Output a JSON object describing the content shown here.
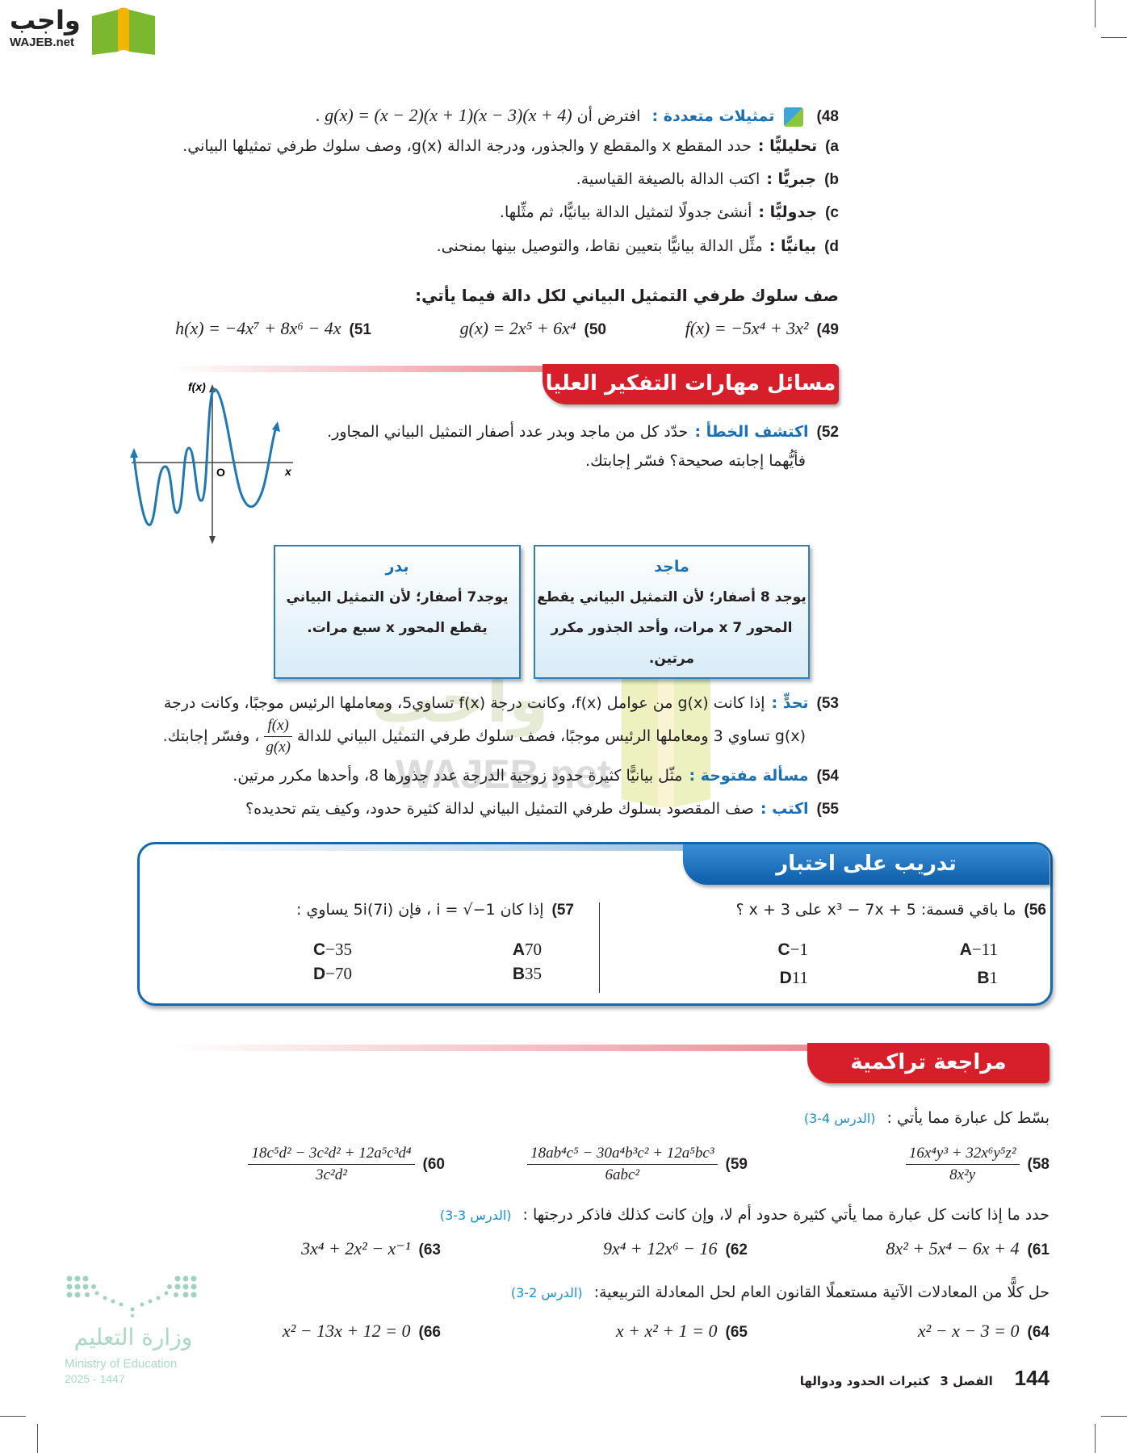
{
  "logo": {
    "arabic": "واجب",
    "latin": "WAJEB.net"
  },
  "watermark": {
    "arabic": "واجب",
    "latin": "WAJEB.net"
  },
  "q48": {
    "number": "48)",
    "label": "تمثيلات متعددة :",
    "text": "افترض أن",
    "math": ". g(x) = (x − 2)(x + 1)(x − 3)(x + 4)",
    "parts": [
      {
        "letter": "a)",
        "label": "تحليليًّا :",
        "text": "حدد المقطع x والمقطع y والجذور، ودرجة الدالة g(x)، وصف سلوك طرفي تمثيلها البياني."
      },
      {
        "letter": "b)",
        "label": "جبريًّا :",
        "text": "اكتب الدالة بالصيغة القياسية."
      },
      {
        "letter": "c)",
        "label": "جدوليًّا :",
        "text": "أنشئ جدولًا لتمثيل الدالة بيانيًّا، ثم مثِّلها."
      },
      {
        "letter": "d)",
        "label": "بيانيًّا :",
        "text": "مثِّل الدالة بيانيًّا بتعيين نقاط، والتوصيل بينها بمنحنى."
      }
    ]
  },
  "endBehavior": {
    "heading": "صف سلوك طرفي التمثيل البياني لكل دالة فيما يأتي:",
    "items": [
      {
        "number": "49)",
        "math": "f(x) = −5x⁴ + 3x²"
      },
      {
        "number": "50)",
        "math": "g(x) = 2x⁵ + 6x⁴"
      },
      {
        "number": "51)",
        "math": "h(x) = −4x⁷ + 8x⁶ − 4x"
      }
    ]
  },
  "hots": {
    "banner": "مسائل مهارات التفكير العليا",
    "banner_color": "#d71f2b",
    "graph": {
      "y_label": "f(x)",
      "origin": "O",
      "x_label": "x"
    },
    "q52": {
      "number": "52)",
      "label": "اكتشف الخطأ :",
      "line1": "حدّد كل من ماجد وبدر عدد أصفار التمثيل البياني المجاور.",
      "line2": "فأيُّهما إجابته صحيحة؟ فسّر إجابتك."
    },
    "majed": {
      "name": "ماجد",
      "line1": "يوجد 8 أصفار؛ لأن التمثيل البياني يقطع",
      "line2": "المحور x  7 مرات، وأحد الجذور مكرر",
      "line3": "مرتين."
    },
    "badr": {
      "name": "بدر",
      "line1": "يوجد7 أصفار؛ لأن التمثيل البياني",
      "line2": "يقطع المحور x سبع مرات."
    },
    "q53": {
      "number": "53)",
      "label": "تحدٍّ :",
      "line1": "إذا كانت g(x) من عوامل f(x)، وكانت درجة f(x) تساوي5، ومعاملها الرئيس موجبًا، وكانت درجة",
      "line2a": "g(x) تساوي 3 ومعاملها الرئيس موجبًا، فصف سلوك طرفي التمثيل البياني للدالة",
      "frac_num": "f(x)",
      "frac_den": "g(x)",
      "line2b": "، وفسّر إجابتك."
    },
    "q54": {
      "number": "54)",
      "label": "مسألة مفتوحة :",
      "text": "مثّل بيانيًّا كثيرة حدود زوجية الدرجة عدد جذورها 8، وأحدها مكرر مرتين."
    },
    "q55": {
      "number": "55)",
      "label": "اكتب :",
      "text": "صف المقصود بسلوك طرفي التمثيل البياني لدالة كثيرة حدود، وكيف يتم تحديده؟"
    }
  },
  "test": {
    "banner": "تدريب على اختبار",
    "banner_color": "#1168b3",
    "q56": {
      "number": "56)",
      "text": "ما باقي قسمة: x³ − 7x + 5 على x + 3 ؟",
      "options": [
        {
          "letter": "A",
          "value": "−11"
        },
        {
          "letter": "B",
          "value": "1"
        },
        {
          "letter": "C",
          "value": "−1"
        },
        {
          "letter": "D",
          "value": "11"
        }
      ]
    },
    "q57": {
      "number": "57)",
      "text": "إذا كان i = √−1 ، فإن 5i(7i) يساوي :",
      "options": [
        {
          "letter": "A",
          "value": "70"
        },
        {
          "letter": "B",
          "value": "35"
        },
        {
          "letter": "C",
          "value": "−35"
        },
        {
          "letter": "D",
          "value": "−70"
        }
      ]
    }
  },
  "review": {
    "banner": "مراجعة تراكمية",
    "simplify": {
      "heading": "بسّط كل عبارة مما يأتي :",
      "lesson": "(الدرس 4-3)",
      "items": [
        {
          "number": "58)",
          "num": "16x⁴y³ + 32x⁶y⁵z²",
          "den": "8x²y"
        },
        {
          "number": "59)",
          "num": "18ab⁴c⁵ − 30a⁴b³c² + 12a⁵bc³",
          "den": "6abc²"
        },
        {
          "number": "60)",
          "num": "18c⁵d² − 3c²d² + 12a⁵c³d⁴",
          "den": "3c²d²"
        }
      ]
    },
    "poly": {
      "heading": "حدد ما إذا كانت كل عبارة مما يأتي كثيرة حدود أم لا، وإن كانت كذلك فاذكر درجتها :",
      "lesson": "(الدرس 3-3)",
      "items": [
        {
          "number": "61)",
          "math": "8x² + 5x⁴ − 6x + 4"
        },
        {
          "number": "62)",
          "math": "9x⁴ + 12x⁶ − 16"
        },
        {
          "number": "63)",
          "math": "3x⁴ + 2x² − x⁻¹"
        }
      ]
    },
    "quad": {
      "heading": "حل كلًّا من المعادلات الآتية مستعملًا القانون العام لحل المعادلة التربيعية:",
      "lesson": "(الدرس 2-3)",
      "items": [
        {
          "number": "64)",
          "math": "x² − x − 3 = 0"
        },
        {
          "number": "65)",
          "math": "x + x² + 1 = 0"
        },
        {
          "number": "66)",
          "math": "x² − 13x + 12 = 0"
        }
      ]
    }
  },
  "ministry": {
    "arabic": "وزارة التعليم",
    "english": "Ministry of Education",
    "year": "2025 - 1447"
  },
  "footer": {
    "page": "144",
    "chapter": "الفصل 3",
    "title": "كثيرات الحدود ودوالها"
  }
}
